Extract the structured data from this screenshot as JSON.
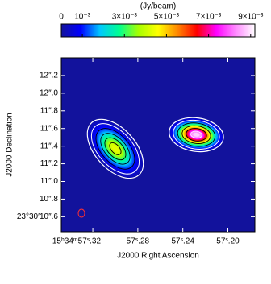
{
  "chart_data": {
    "type": "image",
    "colorbar_label": "(Jy/beam)",
    "clim": [
      0,
      0.0092
    ],
    "cticks": [
      0,
      {
        "value": 0.001,
        "label": "10⁻³"
      },
      {
        "value": 0.003,
        "label": "3×10⁻³"
      },
      {
        "value": 0.005,
        "label": "5×10⁻³"
      },
      {
        "value": 0.007,
        "label": "7×10⁻³"
      },
      {
        "value": 0.009,
        "label": "9×10⁻³"
      }
    ],
    "colormap": [
      "#12129c",
      "#0000ff",
      "#00c8ff",
      "#00ff90",
      "#a8ff00",
      "#ffff00",
      "#ff8800",
      "#ff0000",
      "#ff00ff",
      "#ff88ff",
      "#ffffff"
    ],
    "xlabel": "J2000 Right Ascension",
    "ylabel": "J2000 Declination",
    "xlim": [
      57.348,
      57.176
    ],
    "ylim": [
      10.43,
      12.4
    ],
    "xticks": [
      {
        "value": 57.32,
        "label": "15ʰ34ᵐ57ˢ.32"
      },
      {
        "value": 57.28,
        "label": "57ˢ.28"
      },
      {
        "value": 57.24,
        "label": "57ˢ.24"
      },
      {
        "value": 57.2,
        "label": "57ˢ.20"
      }
    ],
    "yticks": [
      {
        "value": 10.6,
        "label": "23°30′10″.6"
      },
      {
        "value": 10.8,
        "label": "10″.8"
      },
      {
        "value": 11.0,
        "label": "11″.0"
      },
      {
        "value": 11.2,
        "label": "11″.2"
      },
      {
        "value": 11.4,
        "label": "11″.4"
      },
      {
        "value": 11.6,
        "label": "11″.6"
      },
      {
        "value": 11.8,
        "label": "11″.8"
      },
      {
        "value": 12.0,
        "label": "12″.0"
      },
      {
        "value": 12.2,
        "label": "12″.2"
      }
    ],
    "sources": [
      {
        "x": 57.3,
        "y": 11.37,
        "value": 0.0045
      },
      {
        "x": 57.228,
        "y": 11.53,
        "value": 0.0092
      }
    ]
  }
}
